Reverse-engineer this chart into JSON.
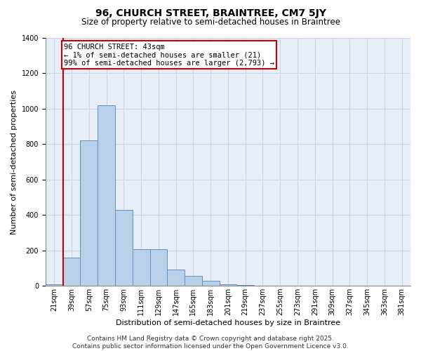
{
  "title1": "96, CHURCH STREET, BRAINTREE, CM7 5JY",
  "title2": "Size of property relative to semi-detached houses in Braintree",
  "xlabel": "Distribution of semi-detached houses by size in Braintree",
  "ylabel": "Number of semi-detached properties",
  "bar_color": "#b8d0e8",
  "bar_edge_color": "#6090c0",
  "marker_color": "#cc0000",
  "annotation_text": "96 CHURCH STREET: 43sqm\n← 1% of semi-detached houses are smaller (21)\n99% of semi-detached houses are larger (2,793) →",
  "annotation_box_color": "#cc0000",
  "categories": [
    "21sqm",
    "39sqm",
    "57sqm",
    "75sqm",
    "93sqm",
    "111sqm",
    "129sqm",
    "147sqm",
    "165sqm",
    "183sqm",
    "201sqm",
    "219sqm",
    "237sqm",
    "255sqm",
    "273sqm",
    "291sqm",
    "309sqm",
    "327sqm",
    "345sqm",
    "363sqm",
    "381sqm"
  ],
  "values": [
    10,
    160,
    820,
    1020,
    430,
    205,
    205,
    90,
    55,
    30,
    10,
    3,
    0,
    0,
    0,
    0,
    0,
    0,
    0,
    0,
    0
  ],
  "ylim": [
    0,
    1400
  ],
  "yticks": [
    0,
    200,
    400,
    600,
    800,
    1000,
    1200,
    1400
  ],
  "grid_color": "#c8d4e8",
  "background_color": "#e8eef8",
  "footer_text": "Contains HM Land Registry data © Crown copyright and database right 2025.\nContains public sector information licensed under the Open Government Licence v3.0.",
  "title1_fontsize": 10,
  "title2_fontsize": 8.5,
  "xlabel_fontsize": 8,
  "ylabel_fontsize": 8,
  "tick_fontsize": 7,
  "footer_fontsize": 6.5,
  "annotation_fontsize": 7.5
}
